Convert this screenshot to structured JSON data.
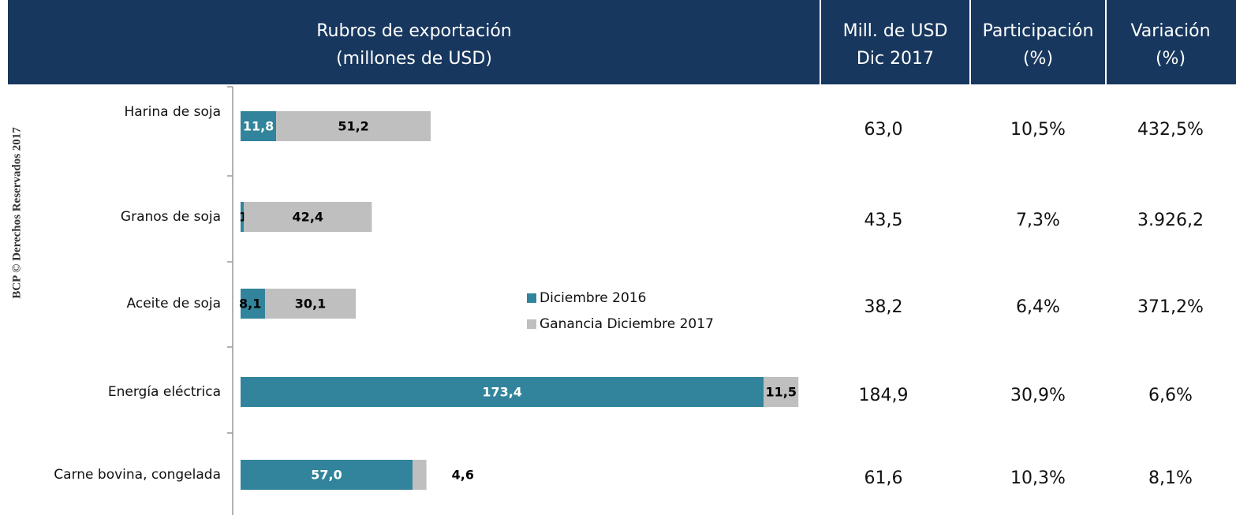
{
  "chart_data": {
    "type": "stacked_barh",
    "title": [
      "Rubros de exportación",
      "(millones de USD)"
    ],
    "categories": [
      "Harina de soja",
      "Granos de soja",
      "Aceite de soja",
      "Energía eléctrica",
      "Carne bovina, congelada"
    ],
    "series": [
      {
        "name": "Diciembre 2016",
        "color": "#31849b",
        "values": [
          11.8,
          1.1,
          8.1,
          173.4,
          57.0
        ],
        "value_labels": [
          "11,8",
          "1,1",
          "8,1",
          "173,4",
          "57,0"
        ]
      },
      {
        "name": "Ganancia Diciembre 2017",
        "color": "#bfbfbf",
        "values": [
          51.2,
          42.4,
          30.1,
          11.5,
          4.6
        ],
        "value_labels": [
          "51,2",
          "42,4",
          "30,1",
          "11,5",
          "4,6"
        ]
      }
    ],
    "xlim": [
      0,
      200
    ]
  },
  "table": {
    "headers": [
      [
        "Mill. de USD",
        "Dic 2017"
      ],
      [
        "Participación",
        "(%)"
      ],
      [
        "Variación",
        "(%)"
      ]
    ],
    "rows": [
      [
        "63,0",
        "10,5%",
        "432,5%"
      ],
      [
        "43,5",
        "7,3%",
        "3.926,2"
      ],
      [
        "38,2",
        "6,4%",
        "371,2%"
      ],
      [
        "184,9",
        "30,9%",
        "6,6%"
      ],
      [
        "61,6",
        "10,3%",
        "8,1%"
      ]
    ]
  },
  "side_note": "BCP © Derechos Reservados 2017"
}
